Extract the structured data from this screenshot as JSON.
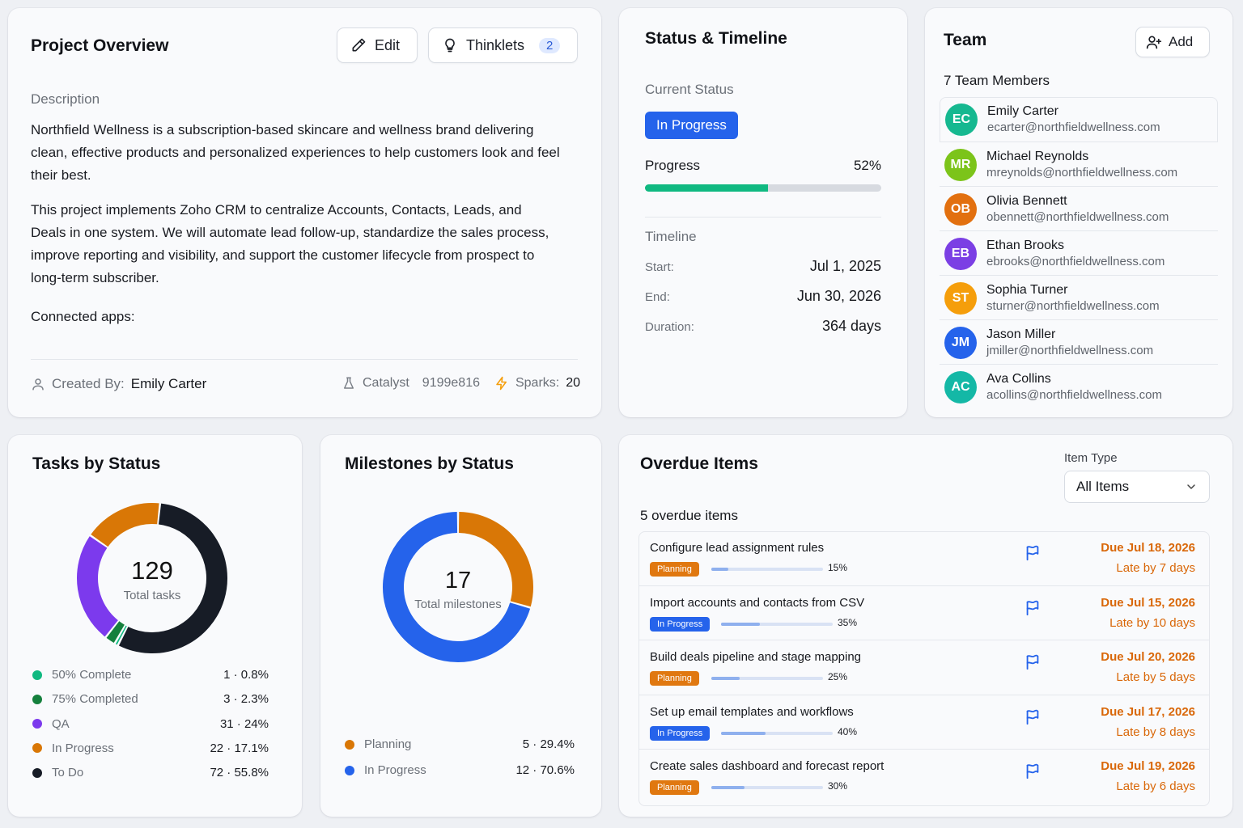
{
  "overview": {
    "title": "Project Overview",
    "edit_label": "Edit",
    "thinklets_label": "Thinklets",
    "thinklets_count": "2",
    "description_label": "Description",
    "paragraph1": "Northfield Wellness is a subscription-based skincare and wellness brand delivering clean, effective products and personalized experiences to help customers look and feel their best.",
    "paragraph2": "This project implements Zoho CRM to centralize Accounts, Contacts, Leads, and Deals in one system. We will automate lead follow-up, standardize the sales process, improve reporting and visibility, and support the customer lifecycle from prospect to long-term subscriber.",
    "connected_apps_label": "Connected apps:",
    "created_by_label": "Created By:",
    "created_by_value": "Emily Carter",
    "catalyst_label": "Catalyst",
    "catalyst_id": "9199e816",
    "sparks_label": "Sparks:",
    "sparks_value": "20"
  },
  "status": {
    "title": "Status & Timeline",
    "current_status_label": "Current Status",
    "current_status": "In Progress",
    "progress_label": "Progress",
    "progress_text": "52%",
    "progress_value": 0.52,
    "timeline_label": "Timeline",
    "start_label": "Start:",
    "start_value": "Jul 1, 2025",
    "end_label": "End:",
    "end_value": "Jun 30, 2026",
    "duration_label": "Duration:",
    "duration_value": "364 days"
  },
  "team": {
    "title": "Team",
    "add_label": "Add",
    "count_label": "7 Team Members",
    "members": [
      {
        "initials": "EC",
        "name": "Emily Carter",
        "email": "ecarter@northfieldwellness.com",
        "color": "#16b890"
      },
      {
        "initials": "MR",
        "name": "Michael Reynolds",
        "email": "mreynolds@northfieldwellness.com",
        "color": "#7cc41a"
      },
      {
        "initials": "OB",
        "name": "Olivia Bennett",
        "email": "obennett@northfieldwellness.com",
        "color": "#e2700f"
      },
      {
        "initials": "EB",
        "name": "Ethan Brooks",
        "email": "ebrooks@northfieldwellness.com",
        "color": "#7b3fe4"
      },
      {
        "initials": "ST",
        "name": "Sophia Turner",
        "email": "sturner@northfieldwellness.com",
        "color": "#f59e0b"
      },
      {
        "initials": "JM",
        "name": "Jason Miller",
        "email": "jmiller@northfieldwellness.com",
        "color": "#2563eb"
      },
      {
        "initials": "AC",
        "name": "Ava Collins",
        "email": "acollins@northfieldwellness.com",
        "color": "#14b8a6"
      }
    ]
  },
  "tasks": {
    "title": "Tasks by Status",
    "total": "129",
    "total_label": "Total tasks"
  },
  "milestones": {
    "title": "Milestones by Status",
    "total": "17",
    "total_label": "Total milestones"
  },
  "chart_data": [
    {
      "type": "pie",
      "title": "Tasks by Status",
      "categories": [
        "50% Complete",
        "75% Completed",
        "QA",
        "In Progress",
        "To Do"
      ],
      "values": [
        1,
        3,
        31,
        22,
        72
      ],
      "percent": [
        0.8,
        2.3,
        24,
        17.1,
        55.8
      ],
      "labels": [
        "1 · 0.8%",
        "3 · 2.3%",
        "31 · 24%",
        "22 · 17.1%",
        "72 · 55.8%"
      ],
      "colors": [
        "#10b981",
        "#15803d",
        "#7c3aed",
        "#d97706",
        "#171c26"
      ]
    },
    {
      "type": "pie",
      "title": "Milestones by Status",
      "categories": [
        "Planning",
        "In Progress"
      ],
      "values": [
        5,
        12
      ],
      "percent": [
        29.4,
        70.6
      ],
      "labels": [
        "5 · 29.4%",
        "12 · 70.6%"
      ],
      "colors": [
        "#d97706",
        "#2563eb"
      ]
    }
  ],
  "overdue": {
    "title": "Overdue Items",
    "filter_label": "Item Type",
    "filter_value": "All Items",
    "count_label": "5 overdue items",
    "items": [
      {
        "title": "Configure lead assignment rules",
        "tag": "Planning",
        "tag_color": "#e07810",
        "progress": 0.15,
        "pct": "15%",
        "due": "Due Jul 18, 2026",
        "late": "Late by 7 days"
      },
      {
        "title": "Import accounts and contacts from CSV",
        "tag": "In Progress",
        "tag_color": "#2563eb",
        "progress": 0.35,
        "pct": "35%",
        "due": "Due Jul 15, 2026",
        "late": "Late by 10 days"
      },
      {
        "title": "Build deals pipeline and stage mapping",
        "tag": "Planning",
        "tag_color": "#e07810",
        "progress": 0.25,
        "pct": "25%",
        "due": "Due Jul 20, 2026",
        "late": "Late by 5 days"
      },
      {
        "title": "Set up email templates and workflows",
        "tag": "In Progress",
        "tag_color": "#2563eb",
        "progress": 0.4,
        "pct": "40%",
        "due": "Due Jul 17, 2026",
        "late": "Late by 8 days"
      },
      {
        "title": "Create sales dashboard and forecast report",
        "tag": "Planning",
        "tag_color": "#e07810",
        "progress": 0.3,
        "pct": "30%",
        "due": "Due Jul 19, 2026",
        "late": "Late by 6 days"
      }
    ]
  }
}
